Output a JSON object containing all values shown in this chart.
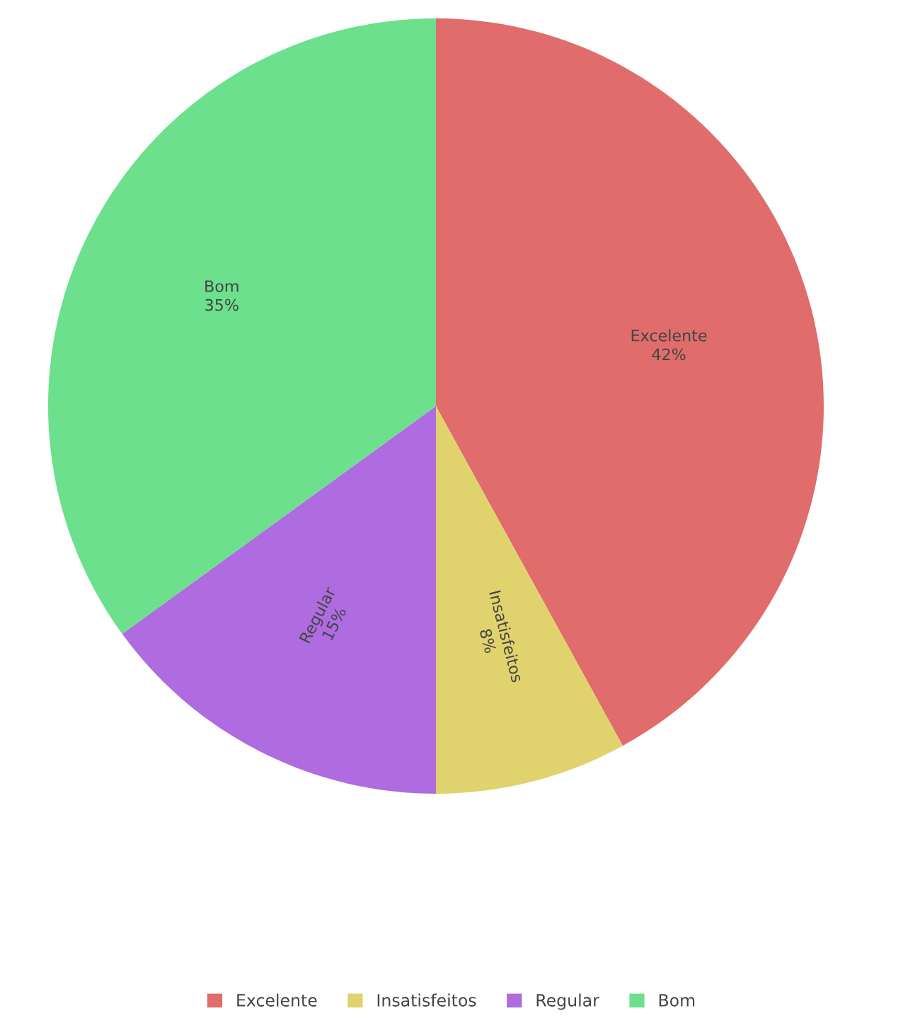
{
  "chart_data": {
    "type": "pie",
    "categories": [
      "Excelente",
      "Insatisfeitos",
      "Regular",
      "Bom"
    ],
    "values": [
      42,
      8,
      15,
      35
    ],
    "value_labels": [
      "42%",
      "8%",
      "15%",
      "35%"
    ],
    "colors": [
      "#e06c6c",
      "#e0d26c",
      "#ae6ce0",
      "#6ce08c"
    ],
    "legend": "bottom"
  }
}
